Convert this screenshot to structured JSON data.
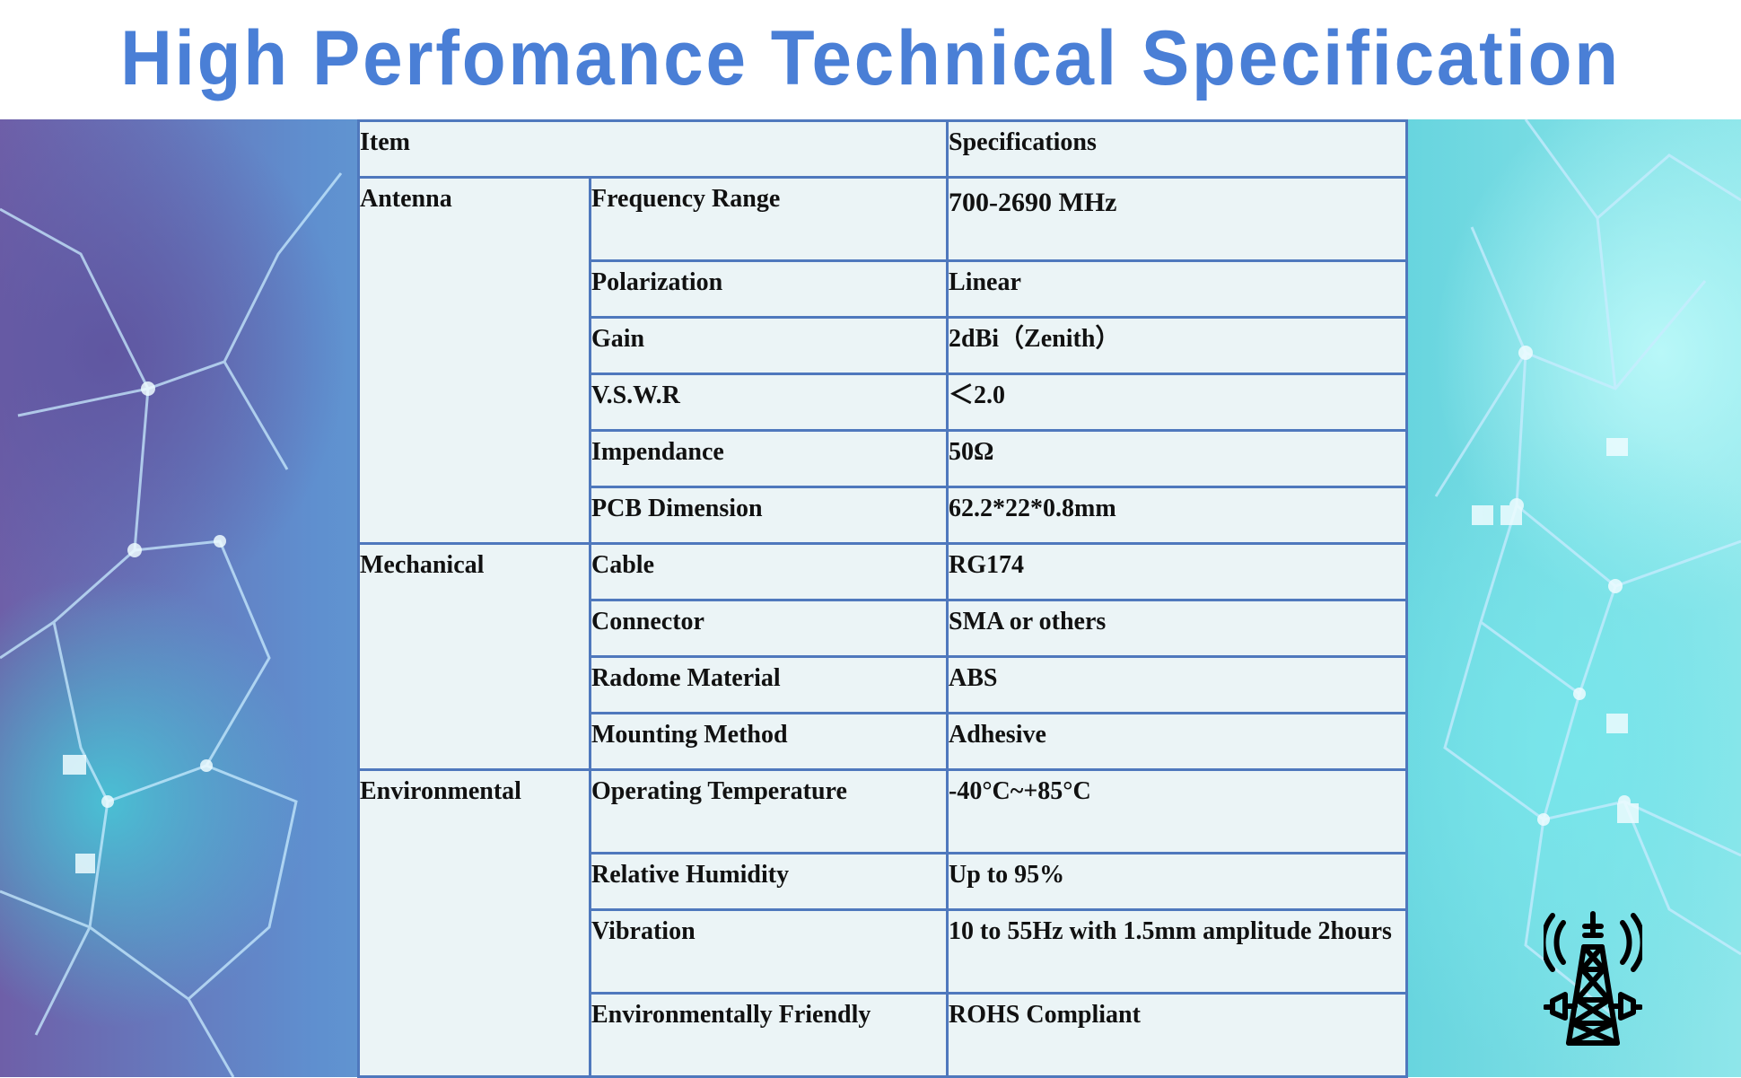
{
  "title": "High Perfomance Technical Specification",
  "table": {
    "header": {
      "item": "Item",
      "specifications": "Specifications"
    },
    "groups": [
      {
        "category": "Antenna",
        "rows": [
          {
            "item": "Frequency Range",
            "value": "700-2690 MHz"
          },
          {
            "item": "Polarization",
            "value": "Linear"
          },
          {
            "item": "Gain",
            "value": "2dBi（Zenith）"
          },
          {
            "item": "V.S.W.R",
            "value": "＜2.0"
          },
          {
            "item": "Impendance",
            "value": "50Ω"
          },
          {
            "item": "PCB Dimension",
            "value": "62.2*22*0.8mm"
          }
        ]
      },
      {
        "category": "Mechanical",
        "rows": [
          {
            "item": "Cable",
            "value": "RG174"
          },
          {
            "item": "Connector",
            "value": "SMA or others"
          },
          {
            "item": "Radome Material",
            "value": "ABS"
          },
          {
            "item": "Mounting Method",
            "value": "Adhesive"
          }
        ]
      },
      {
        "category": "Environmental",
        "rows": [
          {
            "item": "Operating Temperature",
            "value": "-40°C~+85°C"
          },
          {
            "item": "Relative Humidity",
            "value": "Up to 95%"
          },
          {
            "item": "Vibration",
            "value": "10 to 55Hz with 1.5mm amplitude 2hours"
          },
          {
            "item": "Environmentally Friendly",
            "value": "ROHS Compliant"
          }
        ]
      }
    ]
  },
  "icons": {
    "tower": "cell-tower-icon"
  },
  "colors": {
    "title": "#4a7fd6",
    "table_border": "#4f78bd",
    "table_bg": "#ebf4f6"
  }
}
